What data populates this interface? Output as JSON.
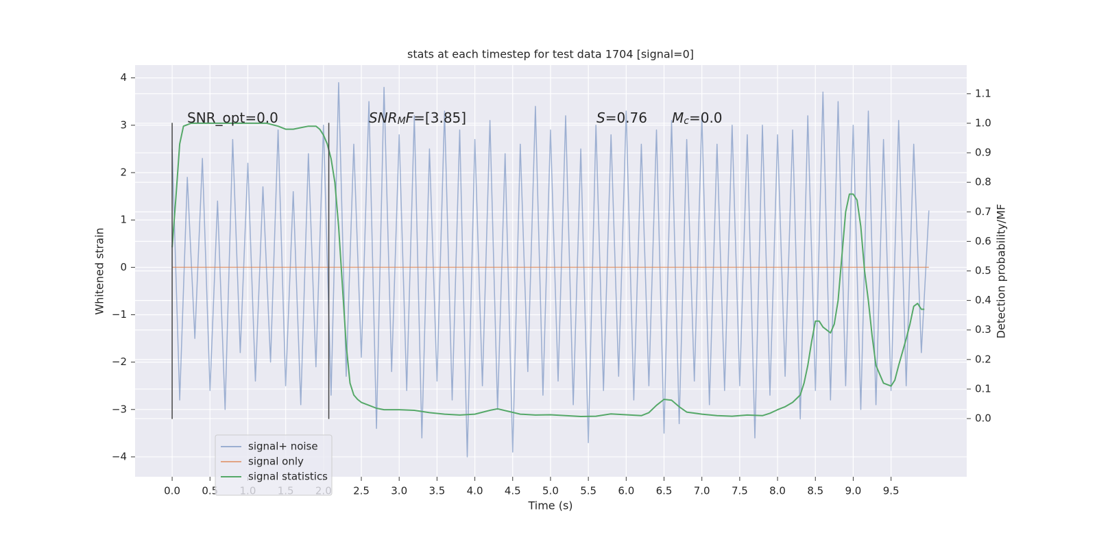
{
  "chart_data": {
    "type": "line",
    "title": "stats at each timestep for test data 1704 [signal=0]",
    "xlabel": "Time (s)",
    "ylabel": "Whitened strain",
    "y2label": "Detection probability/MF",
    "xlim": [
      -0.49,
      10.5
    ],
    "ylim": [
      -4.42,
      4.27
    ],
    "y2lim": [
      -0.197,
      1.197
    ],
    "xticks": [
      {
        "value": 0,
        "label": "0.0"
      },
      {
        "value": 0.5,
        "label": "0.5"
      },
      {
        "value": 1,
        "label": "1.0"
      },
      {
        "value": 1.5,
        "label": "1.5"
      },
      {
        "value": 2,
        "label": "2.0"
      },
      {
        "value": 2.5,
        "label": "2.5"
      },
      {
        "value": 3,
        "label": "3.0"
      },
      {
        "value": 3.5,
        "label": "3.5"
      },
      {
        "value": 4,
        "label": "4.0"
      },
      {
        "value": 4.5,
        "label": "4.5"
      },
      {
        "value": 5,
        "label": "5.0"
      },
      {
        "value": 5.5,
        "label": "5.5"
      },
      {
        "value": 6,
        "label": "6.0"
      },
      {
        "value": 6.5,
        "label": "6.5"
      },
      {
        "value": 7,
        "label": "7.0"
      },
      {
        "value": 7.5,
        "label": "7.5"
      },
      {
        "value": 8,
        "label": "8.0"
      },
      {
        "value": 8.5,
        "label": "8.5"
      },
      {
        "value": 9,
        "label": "9.0"
      },
      {
        "value": 9.5,
        "label": "9.5"
      }
    ],
    "yticks": [
      {
        "value": -4,
        "label": "−4"
      },
      {
        "value": -3,
        "label": "−3"
      },
      {
        "value": -2,
        "label": "−2"
      },
      {
        "value": -1,
        "label": "−1"
      },
      0,
      1,
      2,
      3,
      4
    ],
    "y2ticks": [
      {
        "value": 0,
        "label": "0.0"
      },
      {
        "value": 0.1,
        "label": "0.1"
      },
      {
        "value": 0.2,
        "label": "0.2"
      },
      {
        "value": 0.3,
        "label": "0.3"
      },
      {
        "value": 0.4,
        "label": "0.4"
      },
      {
        "value": 0.5,
        "label": "0.5"
      },
      {
        "value": 0.6,
        "label": "0.6"
      },
      {
        "value": 0.7,
        "label": "0.7"
      },
      {
        "value": 0.8,
        "label": "0.8"
      },
      {
        "value": 0.9,
        "label": "0.9"
      },
      {
        "value": 1,
        "label": "1.0"
      },
      {
        "value": 1.1,
        "label": "1.1"
      }
    ],
    "grid": true,
    "legend": "lower left",
    "series": [
      {
        "name": "signal+ noise",
        "color": "#4c72b0",
        "opacity": 0.5,
        "x": [
          0,
          0.1,
          0.2,
          0.3,
          0.4,
          0.5,
          0.6,
          0.7,
          0.8,
          0.9,
          1,
          1.1,
          1.2,
          1.3,
          1.4,
          1.5,
          1.6,
          1.7,
          1.8,
          1.9,
          2,
          2.1,
          2.2,
          2.3,
          2.4,
          2.5,
          2.6,
          2.7,
          2.8,
          2.9,
          3,
          3.1,
          3.2,
          3.3,
          3.4,
          3.5,
          3.6,
          3.7,
          3.8,
          3.9,
          4,
          4.1,
          4.2,
          4.3,
          4.4,
          4.5,
          4.6,
          4.7,
          4.8,
          4.9,
          5,
          5.1,
          5.2,
          5.3,
          5.4,
          5.5,
          5.6,
          5.7,
          5.8,
          5.9,
          6,
          6.1,
          6.2,
          6.3,
          6.4,
          6.5,
          6.6,
          6.7,
          6.8,
          6.9,
          7,
          7.1,
          7.2,
          7.3,
          7.4,
          7.5,
          7.6,
          7.7,
          7.8,
          7.9,
          8,
          8.1,
          8.2,
          8.3,
          8.4,
          8.5,
          8.6,
          8.7,
          8.8,
          8.9,
          9,
          9.1,
          9.2,
          9.3,
          9.4,
          9.5,
          9.6,
          9.7,
          9.8,
          9.9,
          10
        ],
        "values": [
          2.5,
          -2.8,
          1.9,
          -1.5,
          2.3,
          -2.6,
          1.4,
          -3.0,
          2.7,
          -1.8,
          2.2,
          -2.4,
          1.7,
          -2.0,
          2.9,
          -2.5,
          1.6,
          -2.9,
          2.4,
          -2.1,
          3.0,
          -2.7,
          3.9,
          -2.3,
          2.6,
          -1.9,
          3.5,
          -3.4,
          3.8,
          -2.2,
          2.8,
          -2.6,
          3.2,
          -3.6,
          2.5,
          -2.4,
          3.3,
          -2.8,
          2.9,
          -4.0,
          2.7,
          -2.5,
          3.1,
          -3.0,
          2.4,
          -3.9,
          2.6,
          -2.2,
          3.4,
          -2.7,
          2.9,
          -2.4,
          3.2,
          -2.9,
          2.5,
          -3.7,
          3.0,
          -2.6,
          2.8,
          -2.3,
          3.3,
          -2.8,
          2.6,
          -2.5,
          2.9,
          -3.5,
          3.1,
          -3.3,
          2.7,
          -2.4,
          3.2,
          -2.9,
          2.6,
          -2.6,
          3.0,
          -2.5,
          2.8,
          -3.6,
          3.0,
          -2.7,
          2.8,
          -2.3,
          2.9,
          -3.2,
          3.2,
          -2.6,
          3.7,
          -2.8,
          3.5,
          -2.5,
          3.0,
          -3.0,
          3.3,
          -2.9,
          2.7,
          -2.6,
          3.1,
          -2.5,
          2.6,
          -1.8,
          1.2
        ]
      },
      {
        "name": "signal only",
        "color": "#dd8452",
        "opacity": 0.7,
        "x": [
          0,
          10
        ],
        "values": [
          0,
          0
        ]
      },
      {
        "name": "signal statistics",
        "color": "#55a868",
        "axis": "y2",
        "x": [
          0,
          0.05,
          0.1,
          0.15,
          0.25,
          0.5,
          1,
          1.25,
          1.4,
          1.5,
          1.6,
          1.7,
          1.8,
          1.9,
          1.95,
          2,
          2.05,
          2.1,
          2.15,
          2.2,
          2.25,
          2.3,
          2.35,
          2.4,
          2.45,
          2.5,
          2.6,
          2.7,
          2.8,
          3,
          3.2,
          3.4,
          3.6,
          3.8,
          4,
          4.2,
          4.3,
          4.4,
          4.6,
          4.8,
          5,
          5.2,
          5.4,
          5.6,
          5.8,
          6,
          6.2,
          6.3,
          6.4,
          6.5,
          6.6,
          6.7,
          6.8,
          7,
          7.2,
          7.4,
          7.6,
          7.8,
          7.9,
          8,
          8.1,
          8.2,
          8.3,
          8.35,
          8.4,
          8.45,
          8.5,
          8.55,
          8.6,
          8.65,
          8.7,
          8.75,
          8.8,
          8.85,
          8.9,
          8.95,
          9,
          9.05,
          9.1,
          9.15,
          9.2,
          9.25,
          9.3,
          9.4,
          9.5,
          9.55,
          9.6,
          9.7,
          9.75,
          9.8,
          9.85,
          9.9,
          9.94
        ],
        "values": [
          0.58,
          0.75,
          0.93,
          0.99,
          1.0,
          1.0,
          1.0,
          1.0,
          0.99,
          0.98,
          0.98,
          0.985,
          0.99,
          0.99,
          0.98,
          0.96,
          0.93,
          0.88,
          0.8,
          0.65,
          0.45,
          0.25,
          0.12,
          0.08,
          0.065,
          0.055,
          0.045,
          0.035,
          0.03,
          0.03,
          0.028,
          0.02,
          0.015,
          0.012,
          0.015,
          0.028,
          0.033,
          0.027,
          0.015,
          0.012,
          0.013,
          0.01,
          0.007,
          0.008,
          0.016,
          0.013,
          0.01,
          0.02,
          0.045,
          0.065,
          0.062,
          0.04,
          0.022,
          0.015,
          0.01,
          0.008,
          0.012,
          0.01,
          0.018,
          0.03,
          0.04,
          0.055,
          0.08,
          0.12,
          0.18,
          0.26,
          0.33,
          0.33,
          0.31,
          0.3,
          0.29,
          0.32,
          0.4,
          0.55,
          0.7,
          0.76,
          0.76,
          0.74,
          0.65,
          0.5,
          0.4,
          0.28,
          0.18,
          0.12,
          0.11,
          0.13,
          0.18,
          0.27,
          0.32,
          0.38,
          0.39,
          0.37,
          0.37
        ]
      }
    ],
    "vlines": {
      "x": [
        0,
        2.07
      ],
      "ymin": -3.2,
      "ymax": 3.05,
      "color": "#444444"
    },
    "annotations": [
      [
        {
          "text": "SNR_opt=0.0"
        }
      ],
      [
        {
          "text": "SNR",
          "italic": true
        },
        {
          "text": "M",
          "italic": true,
          "sub": true
        },
        {
          "text": "F",
          "italic": true
        },
        {
          "text": "=[3.85]"
        }
      ],
      [
        {
          "text": "S",
          "italic": true
        },
        {
          "text": "=0.76"
        }
      ],
      [
        {
          "text": "M",
          "italic": true
        },
        {
          "text": "c",
          "italic": true,
          "sub": true
        },
        {
          "text": "=0.0"
        }
      ]
    ]
  }
}
